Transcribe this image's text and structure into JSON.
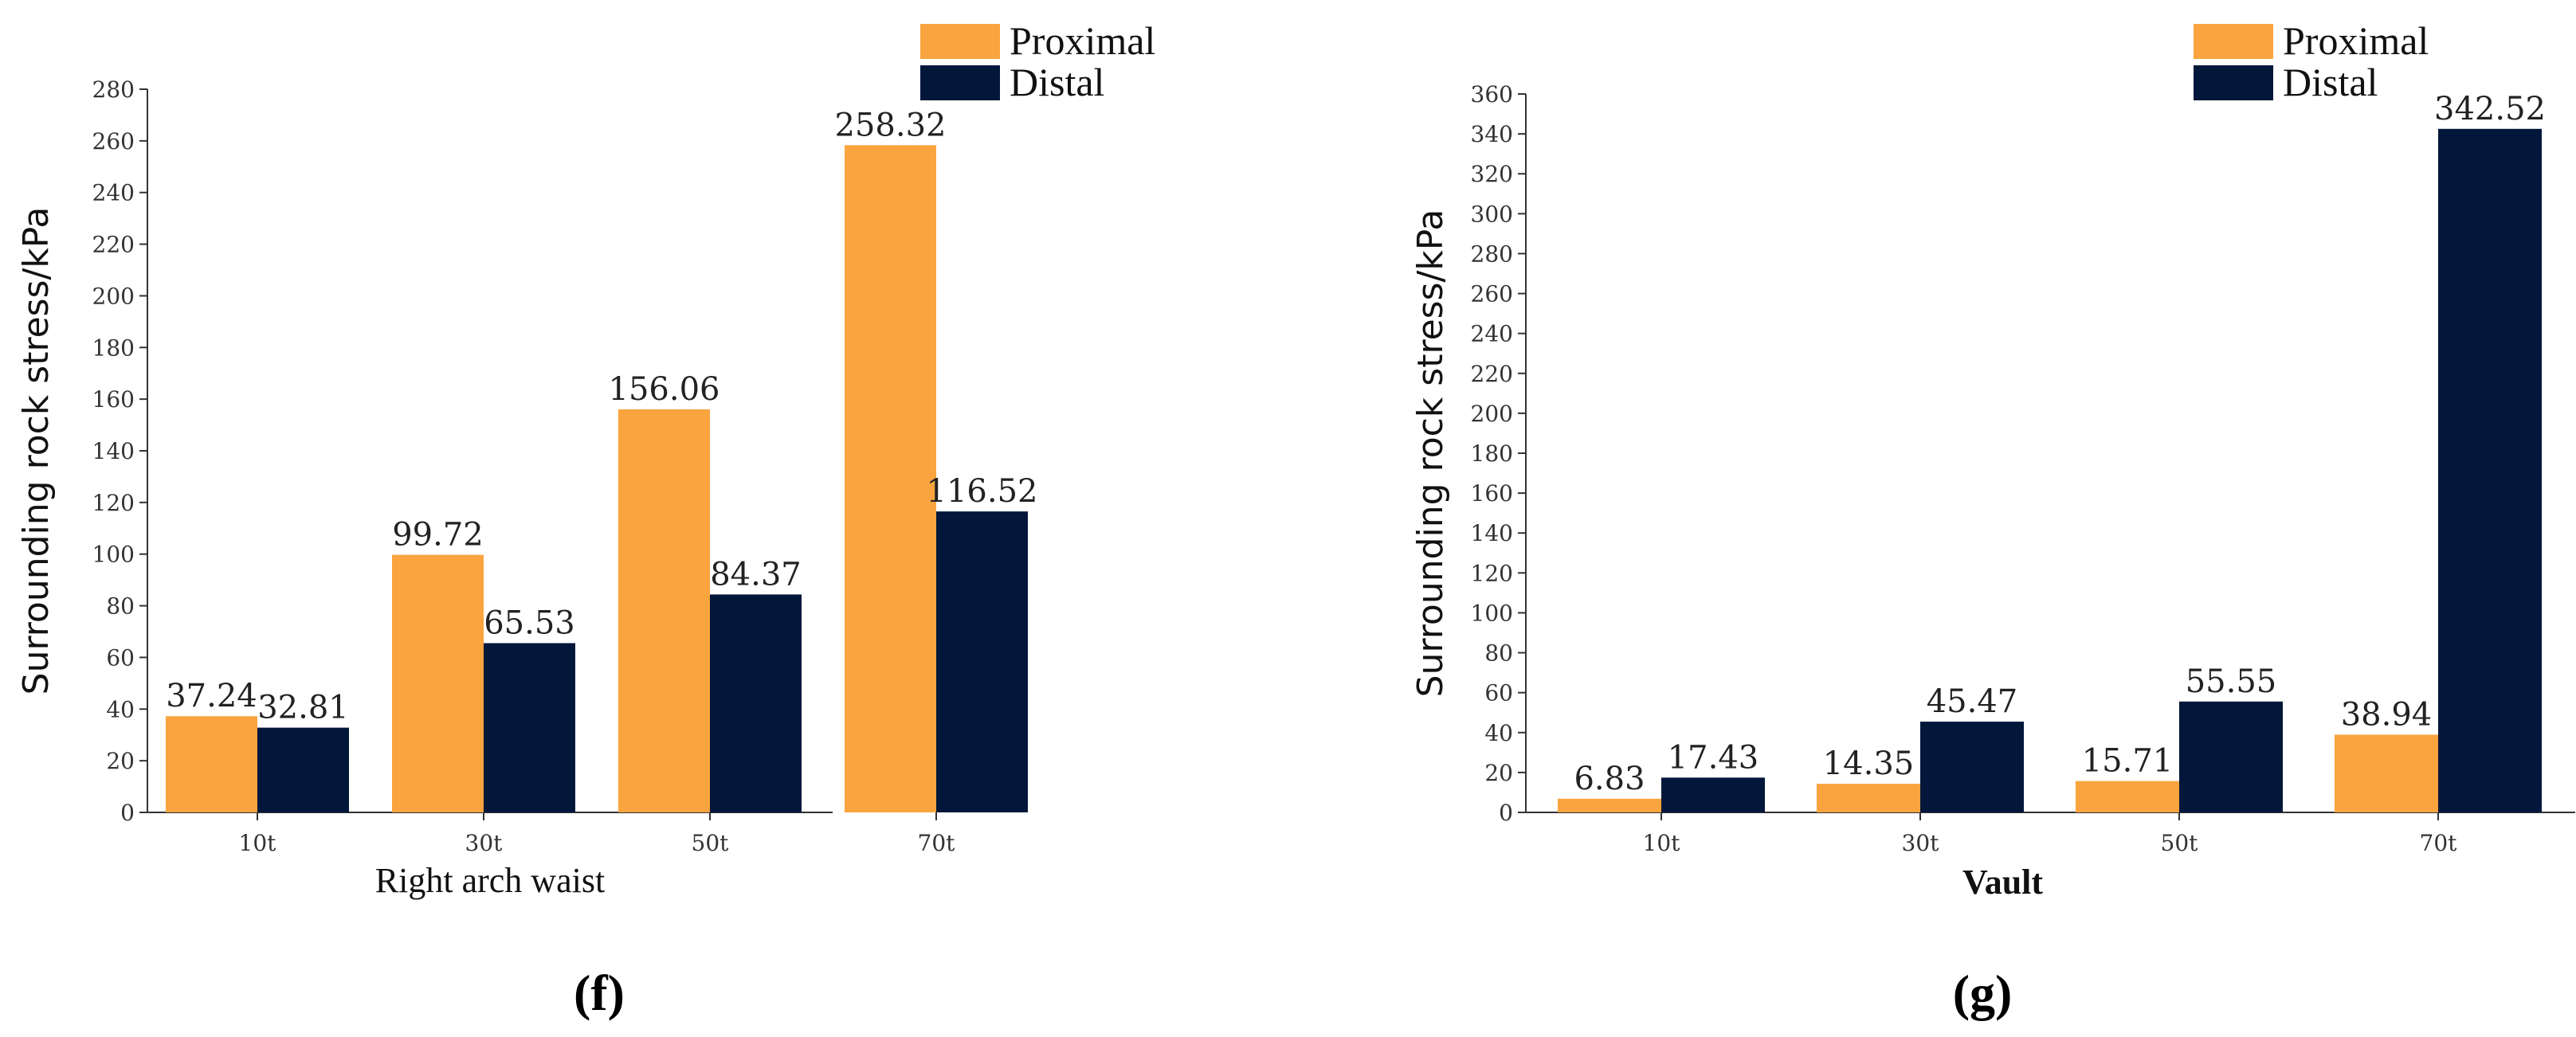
{
  "colors": {
    "proximal": "#F9A43E",
    "distal": "#02173A",
    "axis": "#333333"
  },
  "chart_data": [
    {
      "type": "bar",
      "panel_label": "(f)",
      "categories": [
        "10t",
        "30t",
        "50t",
        "70t"
      ],
      "series": [
        {
          "name": "Proximal",
          "values": [
            37.24,
            99.72,
            156.06,
            258.32
          ],
          "labels": [
            "37.24",
            "99.72",
            "156.06",
            "258.32"
          ]
        },
        {
          "name": "Distal",
          "values": [
            32.81,
            65.53,
            84.37,
            116.52
          ],
          "labels": [
            "32.81",
            "65.53",
            "84.37",
            "116.52"
          ]
        }
      ],
      "xlabel": "Right arch waist",
      "ylabel": "Surrounding rock stress/kPa",
      "ylim": [
        0,
        280
      ],
      "ytick_step": 20,
      "legend_position": "top-right"
    },
    {
      "type": "bar",
      "panel_label": "(g)",
      "categories": [
        "10t",
        "30t",
        "50t",
        "70t"
      ],
      "series": [
        {
          "name": "Proximal",
          "values": [
            6.83,
            14.35,
            15.71,
            38.94
          ],
          "labels": [
            "6.83",
            "14.35",
            "15.71",
            "38.94"
          ]
        },
        {
          "name": "Distal",
          "values": [
            17.43,
            45.47,
            55.55,
            342.52
          ],
          "labels": [
            "17.43",
            "45.47",
            "55.55",
            "342.52"
          ]
        }
      ],
      "xlabel": "Vault",
      "ylabel": "Surrounding rock stress/kPa",
      "ylim": [
        0,
        360
      ],
      "ytick_step": 20,
      "legend_position": "top-right"
    }
  ]
}
